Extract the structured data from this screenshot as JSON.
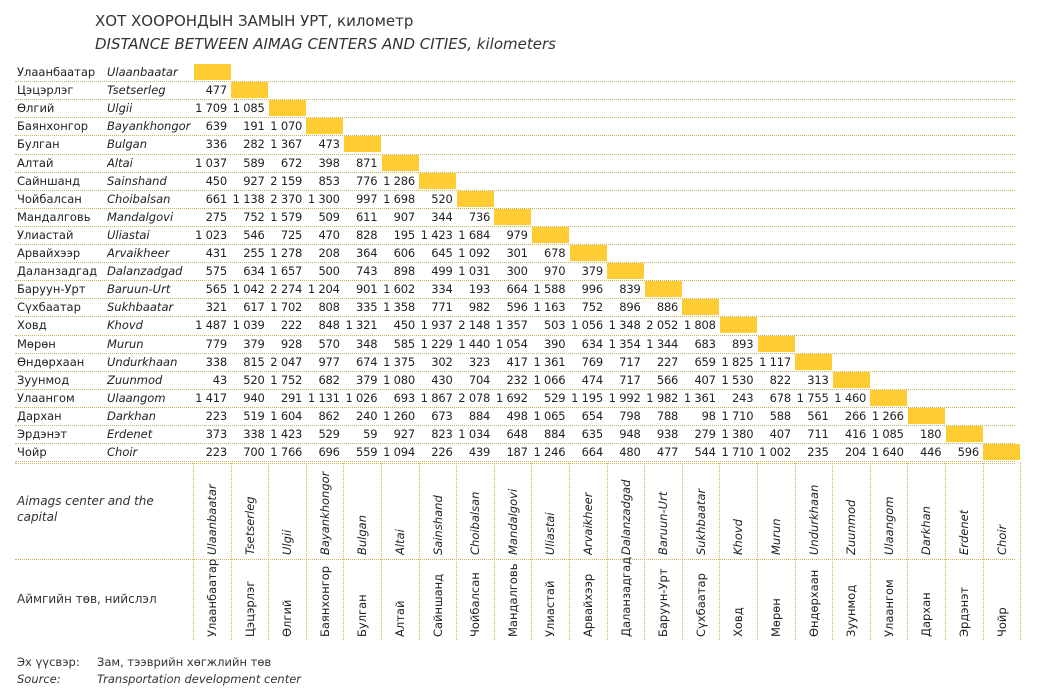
{
  "title": "ХОТ ХООРОНДЫН ЗАМЫН УРТ, километр",
  "subtitle": "DISTANCE BETWEEN AIMAG CENTERS AND CITIES, kilometers",
  "cities_mn": [
    "Улаанбаатар",
    "Цэцэрлэг",
    "Өлгий",
    "Баянхонгор",
    "Булган",
    "Алтай",
    "Сайншанд",
    "Чойбалсан",
    "Мандалговь",
    "Улиастай",
    "Арвайхээр",
    "Даланзадгад",
    "Баруун-Урт",
    "Сүхбаатар",
    "Ховд",
    "Мөрөн",
    "Өндөрхаан",
    "Зуунмод",
    "Улаангом",
    "Дархан",
    "Эрдэнэт",
    "Чойр"
  ],
  "cities_en": [
    "Ulaanbaatar",
    "Tsetserleg",
    "Ulgii",
    "Bayankhongor",
    "Bulgan",
    "Altai",
    "Sainshand",
    "Choibalsan",
    "Mandalgovi",
    "Uliastai",
    "Arvaikheer",
    "Dalanzadgad",
    "Baruun-Urt",
    "Sukhbaatar",
    "Khovd",
    "Murun",
    "Undurkhaan",
    "Zuunmod",
    "Ulaangom",
    "Darkhan",
    "Erdenet",
    "Choir"
  ],
  "distances": [
    [],
    [
      "477"
    ],
    [
      "1 709",
      "1 085"
    ],
    [
      "639",
      "191",
      "1 070"
    ],
    [
      "336",
      "282",
      "1 367",
      "473"
    ],
    [
      "1 037",
      "589",
      "672",
      "398",
      "871"
    ],
    [
      "450",
      "927",
      "2 159",
      "853",
      "776",
      "1 286"
    ],
    [
      "661",
      "1 138",
      "2 370",
      "1 300",
      "997",
      "1 698",
      "520"
    ],
    [
      "275",
      "752",
      "1 579",
      "509",
      "611",
      "907",
      "344",
      "736"
    ],
    [
      "1 023",
      "546",
      "725",
      "470",
      "828",
      "195",
      "1 423",
      "1 684",
      "979"
    ],
    [
      "431",
      "255",
      "1 278",
      "208",
      "364",
      "606",
      "645",
      "1 092",
      "301",
      "678"
    ],
    [
      "575",
      "634",
      "1 657",
      "500",
      "743",
      "898",
      "499",
      "1 031",
      "300",
      "970",
      "379"
    ],
    [
      "565",
      "1 042",
      "2 274",
      "1 204",
      "901",
      "1 602",
      "334",
      "193",
      "664",
      "1 588",
      "996",
      "839"
    ],
    [
      "321",
      "617",
      "1 702",
      "808",
      "335",
      "1 358",
      "771",
      "982",
      "596",
      "1 163",
      "752",
      "896",
      "886"
    ],
    [
      "1 487",
      "1 039",
      "222",
      "848",
      "1 321",
      "450",
      "1 937",
      "2 148",
      "1 357",
      "503",
      "1 056",
      "1 348",
      "2 052",
      "1 808"
    ],
    [
      "779",
      "379",
      "928",
      "570",
      "348",
      "585",
      "1 229",
      "1 440",
      "1 054",
      "390",
      "634",
      "1 354",
      "1 344",
      "683",
      "893"
    ],
    [
      "338",
      "815",
      "2 047",
      "977",
      "674",
      "1 375",
      "302",
      "323",
      "417",
      "1 361",
      "769",
      "717",
      "227",
      "659",
      "1 825",
      "1 117"
    ],
    [
      "43",
      "520",
      "1 752",
      "682",
      "379",
      "1 080",
      "430",
      "704",
      "232",
      "1 066",
      "474",
      "717",
      "566",
      "407",
      "1 530",
      "822",
      "313"
    ],
    [
      "1 417",
      "940",
      "291",
      "1 131",
      "1 026",
      "693",
      "1 867",
      "2 078",
      "1 692",
      "529",
      "1 195",
      "1 992",
      "1 982",
      "1 361",
      "243",
      "678",
      "1 755",
      "1 460"
    ],
    [
      "223",
      "519",
      "1 604",
      "862",
      "240",
      "1 260",
      "673",
      "884",
      "498",
      "1 065",
      "654",
      "798",
      "788",
      "98",
      "1 710",
      "588",
      "561",
      "266",
      "1 266"
    ],
    [
      "373",
      "338",
      "1 423",
      "529",
      "59",
      "927",
      "823",
      "1 034",
      "648",
      "884",
      "635",
      "948",
      "938",
      "279",
      "1 380",
      "407",
      "711",
      "416",
      "1 085",
      "180"
    ],
    [
      "223",
      "700",
      "1 766",
      "696",
      "559",
      "1 094",
      "226",
      "439",
      "187",
      "1 246",
      "664",
      "480",
      "477",
      "544",
      "1 710",
      "1 002",
      "235",
      "204",
      "1 640",
      "446",
      "596"
    ]
  ],
  "col_label_en": "Aimags center and the capital",
  "col_label_mn": "Аймгийн төв, нийслэл",
  "source_label_mn": "Эх үүсвэр:",
  "source_value_mn": "Зам, тээврийн хөгжлийн төв",
  "source_label_en": "Source:",
  "source_value_en": "Transportation development center",
  "colors": {
    "diagonal": "#ffcc33",
    "gridline": "#c8b45a"
  }
}
